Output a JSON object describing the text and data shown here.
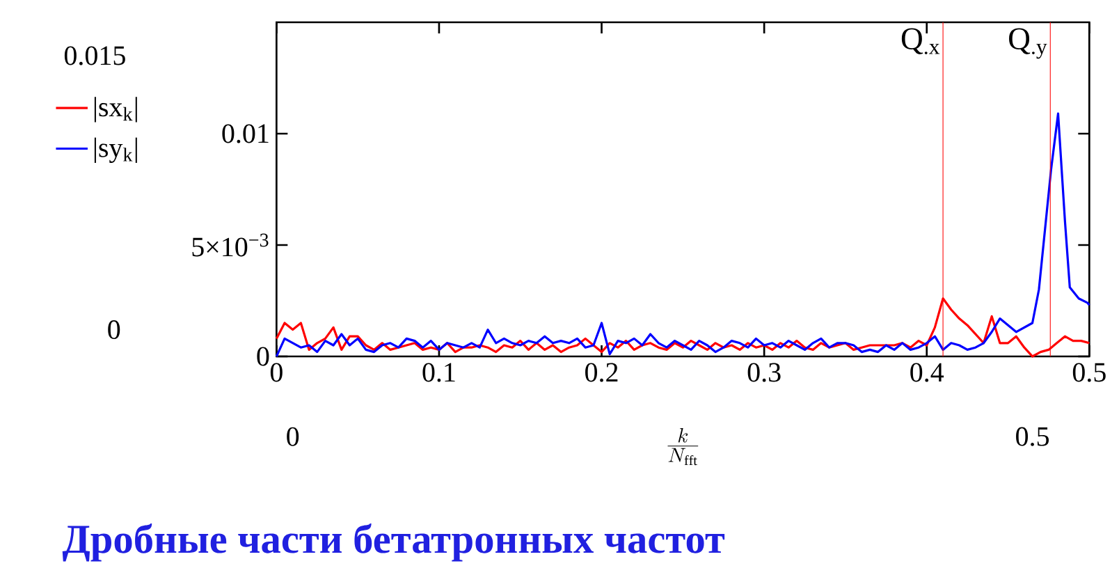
{
  "chart_data": {
    "type": "line",
    "title": "Дробные части бетатронных частот",
    "xlabel": "\\frac{k}{N_{\\mathrm{fft}}}",
    "xlim": [
      0,
      0.5
    ],
    "ylim": [
      0,
      0.015
    ],
    "xticks": [
      0,
      0.1,
      0.2,
      0.3,
      0.4,
      0.5
    ],
    "yticks": [
      0,
      {
        "value": 0.005,
        "label": "5×10$^{−3}$"
      },
      0.01
    ],
    "legend": "left",
    "series": [
      {
        "name": "|sx$_{k}$|",
        "color": "#ff0000",
        "x": [
          0,
          0.005,
          0.01,
          0.015,
          0.02,
          0.025,
          0.03,
          0.035,
          0.04,
          0.045,
          0.05,
          0.055,
          0.06,
          0.065,
          0.07,
          0.075,
          0.08,
          0.085,
          0.09,
          0.095,
          0.1,
          0.105,
          0.11,
          0.115,
          0.12,
          0.125,
          0.13,
          0.135,
          0.14,
          0.145,
          0.15,
          0.155,
          0.16,
          0.165,
          0.17,
          0.175,
          0.18,
          0.185,
          0.19,
          0.195,
          0.2,
          0.205,
          0.21,
          0.215,
          0.22,
          0.225,
          0.23,
          0.235,
          0.24,
          0.245,
          0.25,
          0.255,
          0.26,
          0.265,
          0.27,
          0.275,
          0.28,
          0.285,
          0.29,
          0.295,
          0.3,
          0.305,
          0.31,
          0.315,
          0.32,
          0.325,
          0.33,
          0.335,
          0.34,
          0.345,
          0.35,
          0.355,
          0.36,
          0.365,
          0.37,
          0.375,
          0.38,
          0.385,
          0.39,
          0.395,
          0.4,
          0.405,
          0.41,
          0.415,
          0.42,
          0.425,
          0.43,
          0.435,
          0.44,
          0.445,
          0.45,
          0.455,
          0.46,
          0.465,
          0.47,
          0.475,
          0.48,
          0.485,
          0.49,
          0.495,
          0.5
        ],
        "values": [
          0.0008,
          0.0015,
          0.0012,
          0.0015,
          0.0003,
          0.0006,
          0.0008,
          0.0013,
          0.0003,
          0.0009,
          0.0009,
          0.0005,
          0.0003,
          0.0006,
          0.0003,
          0.0004,
          0.0005,
          0.0006,
          0.0003,
          0.0004,
          0.0003,
          0.0006,
          0.0002,
          0.0004,
          0.0004,
          0.0005,
          0.0004,
          0.0002,
          0.0005,
          0.0004,
          0.0007,
          0.0003,
          0.0006,
          0.0003,
          0.0005,
          0.0002,
          0.0004,
          0.0005,
          0.0008,
          0.0005,
          0.0002,
          0.0006,
          0.0004,
          0.0007,
          0.0003,
          0.0005,
          0.0006,
          0.0004,
          0.0003,
          0.0006,
          0.0004,
          0.0007,
          0.0005,
          0.0003,
          0.0006,
          0.0004,
          0.0005,
          0.0003,
          0.0006,
          0.0004,
          0.0005,
          0.0003,
          0.0006,
          0.0004,
          0.0007,
          0.0004,
          0.0003,
          0.0006,
          0.0004,
          0.0005,
          0.0006,
          0.0003,
          0.0004,
          0.0005,
          0.0005,
          0.0005,
          0.0005,
          0.0006,
          0.0004,
          0.0007,
          0.0005,
          0.0013,
          0.0026,
          0.0021,
          0.0017,
          0.0014,
          0.001,
          0.0006,
          0.0018,
          0.0006,
          0.0006,
          0.0009,
          0.0004,
          0.0,
          0.0002,
          0.0003,
          0.0006,
          0.0009,
          0.0007,
          0.0007,
          0.0006
        ]
      },
      {
        "name": "|sy$_{k}$|",
        "color": "#0000ff",
        "x": [
          0,
          0.005,
          0.01,
          0.015,
          0.02,
          0.025,
          0.03,
          0.035,
          0.04,
          0.045,
          0.05,
          0.055,
          0.06,
          0.065,
          0.07,
          0.075,
          0.08,
          0.085,
          0.09,
          0.095,
          0.1,
          0.105,
          0.11,
          0.115,
          0.12,
          0.125,
          0.13,
          0.135,
          0.14,
          0.145,
          0.15,
          0.155,
          0.16,
          0.165,
          0.17,
          0.175,
          0.18,
          0.185,
          0.19,
          0.195,
          0.2,
          0.205,
          0.21,
          0.215,
          0.22,
          0.225,
          0.23,
          0.235,
          0.24,
          0.245,
          0.25,
          0.255,
          0.26,
          0.265,
          0.27,
          0.275,
          0.28,
          0.285,
          0.29,
          0.295,
          0.3,
          0.305,
          0.31,
          0.315,
          0.32,
          0.325,
          0.33,
          0.335,
          0.34,
          0.345,
          0.35,
          0.355,
          0.36,
          0.365,
          0.37,
          0.375,
          0.38,
          0.385,
          0.39,
          0.395,
          0.4,
          0.405,
          0.41,
          0.415,
          0.42,
          0.425,
          0.43,
          0.435,
          0.44,
          0.445,
          0.45,
          0.455,
          0.46,
          0.465,
          0.469,
          0.4765,
          0.4808,
          0.485,
          0.488,
          0.4935,
          0.499,
          0.5
        ],
        "values": [
          0.0,
          0.0008,
          0.0006,
          0.0004,
          0.0005,
          0.0002,
          0.0007,
          0.0005,
          0.001,
          0.0005,
          0.0008,
          0.0003,
          0.0002,
          0.0005,
          0.0006,
          0.0004,
          0.0008,
          0.0007,
          0.0004,
          0.0007,
          0.0003,
          0.0006,
          0.0005,
          0.0004,
          0.0006,
          0.0004,
          0.0012,
          0.0006,
          0.0008,
          0.0006,
          0.0005,
          0.0007,
          0.0006,
          0.0009,
          0.0006,
          0.0007,
          0.0006,
          0.0008,
          0.0004,
          0.0005,
          0.0015,
          0.0001,
          0.0007,
          0.0006,
          0.0008,
          0.0005,
          0.001,
          0.0006,
          0.0004,
          0.0007,
          0.0005,
          0.0003,
          0.0007,
          0.0005,
          0.0002,
          0.0004,
          0.0007,
          0.0006,
          0.0004,
          0.0008,
          0.0005,
          0.0006,
          0.0004,
          0.0007,
          0.0005,
          0.0003,
          0.0006,
          0.0008,
          0.0004,
          0.0006,
          0.0006,
          0.0005,
          0.0002,
          0.0003,
          0.0002,
          0.0005,
          0.0003,
          0.0006,
          0.0003,
          0.0004,
          0.0006,
          0.0009,
          0.0003,
          0.0006,
          0.0005,
          0.0003,
          0.0004,
          0.0006,
          0.0011,
          0.0017,
          0.0014,
          0.0011,
          0.0013,
          0.0015,
          0.003,
          0.0084,
          0.0109,
          0.0061,
          0.0031,
          0.0026,
          0.0024,
          0.0023
        ]
      }
    ],
    "ref_lines": [
      {
        "axis": "x",
        "value": 0.41,
        "label": "Q$_{.x}$",
        "color": "#ff0000"
      },
      {
        "axis": "x",
        "value": 0.476,
        "label": "Q$_{.y}$",
        "color": "#ff0000"
      }
    ],
    "annotations": [
      "0.015",
      "0",
      "0",
      "0.5"
    ]
  }
}
